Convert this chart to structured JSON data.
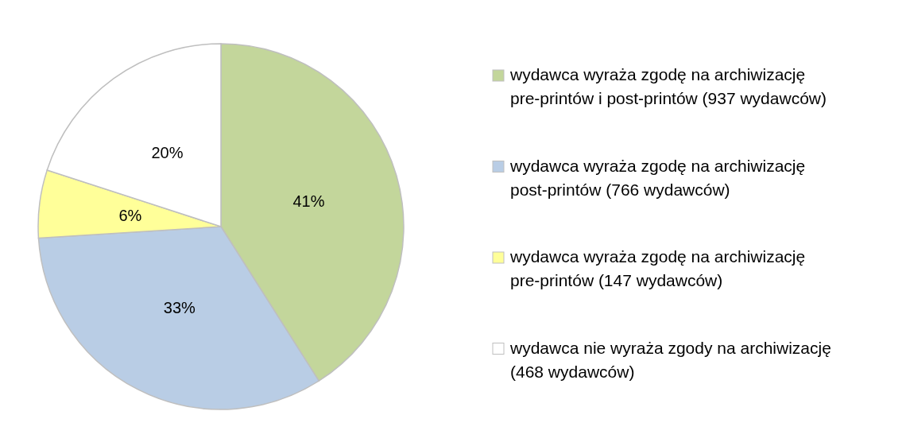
{
  "chart_data": {
    "type": "pie",
    "categories": [
      "wydawca wyraża zgodę na archiwizację pre-printów i post-printów (937 wydawców)",
      "wydawca wyraża zgodę na archiwizację post-printów (766 wydawców)",
      "wydawca wyraża zgodę na archiwizację pre-printów (147 wydawców)",
      "wydawca nie wyraża zgody na archiwizację (468 wydawców)"
    ],
    "values": [
      41,
      33,
      6,
      20
    ],
    "value_labels": [
      "41%",
      "33%",
      "6%",
      "20%"
    ],
    "colors": [
      "#c3d69b",
      "#b9cde5",
      "#ffff99",
      "#ffffff"
    ],
    "legend": "right"
  }
}
